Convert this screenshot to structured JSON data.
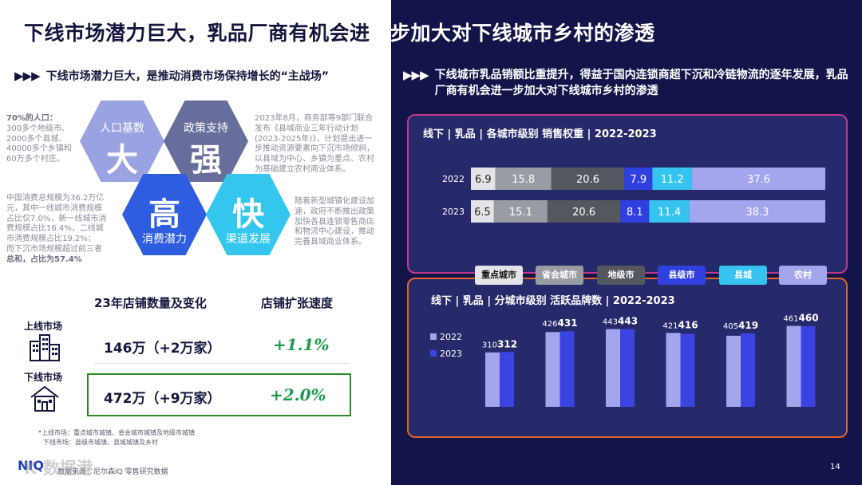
{
  "title": {
    "left": "下线市场潜力巨大，乳品厂商有机会进",
    "right": "一步加大对下线城市乡村的渗透"
  },
  "left": {
    "subtitle": "下线市场潜力巨大，是推动消费市场保持增长的“主战场”",
    "hexes": [
      {
        "small": "人口基数",
        "big": "大",
        "color": "#9aa3e2"
      },
      {
        "small": "政策支持",
        "big": "强",
        "color": "#686e9c"
      },
      {
        "small": "消费潜力",
        "big": "高",
        "color": "#2f5de0"
      },
      {
        "small": "渠道发展",
        "big": "快",
        "color": "#35c6ee"
      }
    ],
    "text_population": [
      "70%的人口：",
      "300多个地级市、",
      "2000多个县城、",
      "40000多个乡镇和",
      "60万多个村庄。"
    ],
    "text_policy": [
      "2023年8月，商务部等9部门联合",
      "发布《县域商业三年行动计划",
      "(2023-2025年)》，计划提出进一",
      "步推动资源要素向下沉市场倾斜，",
      "以县域为中心、乡镇为重点、农村",
      "为基础建立农村商业体系。"
    ],
    "text_consumption": [
      "中国消费总规模为36.2万亿",
      "元，其中一线城市消费规模",
      "占比仅7.0%，新一线城市消",
      "费规模占比16.4%，二线城",
      "市消费规模占比19.2%；",
      "而下沉市场规模超过前三者",
      "总和，占比为57.4%"
    ],
    "text_channel": [
      "随着新型城镇化建设加",
      "速，政府不断推出政策",
      "加快各县连锁零售商店",
      "和物流中心建设，推动",
      "完善县域商业体系。"
    ],
    "stores": {
      "head_count": "23年店铺数量及变化",
      "head_speed": "店铺扩张速度",
      "upper_label": "上线市场",
      "upper_value": "146万（+2万家）",
      "upper_speed": "+1.1%",
      "lower_label": "下线市场",
      "lower_value": "472万（+9万家）",
      "lower_speed": "+2.0%"
    },
    "footnote1": "*上线市场：重点城市城镇、省会城市城镇及地级市城镇",
    "footnote2": "下线市场：县级市城镇、县城城镇及乡村",
    "source": "数据来源：尼尔森IQ 零售研究数据",
    "logo": "NIQ",
    "watermark": "K  数据港"
  },
  "right": {
    "subtitle": "下线城市乳品销额比重提升，得益于国内连锁商超下沉和冷链物流的逐年发展，乳品厂商有机会进一步加大对下线城市乡村的渗透",
    "legend": [
      {
        "name": "重点城市",
        "bg": "#e4e4e8",
        "fg": "#111111"
      },
      {
        "name": "省会城市",
        "bg": "#9a9ca4",
        "fg": "#ffffff"
      },
      {
        "name": "地级市",
        "bg": "#55575f",
        "fg": "#ffffff"
      },
      {
        "name": "县级市",
        "bg": "#2f3fe0",
        "fg": "#ffffff"
      },
      {
        "name": "县城",
        "bg": "#36c3f0",
        "fg": "#ffffff"
      },
      {
        "name": "农村",
        "bg": "#a3a6ec",
        "fg": "#ffffff"
      }
    ],
    "page_number": "14"
  },
  "chart_data": [
    {
      "type": "bar",
      "orientation": "horizontal-stacked",
      "title": "线下 | 乳品 | 各城市级别 销售权重 | 2022-2023",
      "categories": [
        "2022",
        "2023"
      ],
      "series": [
        {
          "name": "重点城市",
          "values": [
            6.9,
            6.5
          ],
          "color": "#e4e4e8",
          "text": "#222222"
        },
        {
          "name": "省会城市",
          "values": [
            15.8,
            15.1
          ],
          "color": "#9a9ca4",
          "text": "#ffffff"
        },
        {
          "name": "地级市",
          "values": [
            20.6,
            20.6
          ],
          "color": "#55575f",
          "text": "#ffffff"
        },
        {
          "name": "县级市",
          "values": [
            7.9,
            8.1
          ],
          "color": "#2f3fe0",
          "text": "#ffffff"
        },
        {
          "name": "县城",
          "values": [
            11.2,
            11.4
          ],
          "color": "#36c3f0",
          "text": "#ffffff"
        },
        {
          "name": "农村",
          "values": [
            37.6,
            38.3
          ],
          "color": "#a3a6ec",
          "text": "#ffffff"
        }
      ]
    },
    {
      "type": "bar",
      "title": "线下 | 乳品 | 分城市级别 活跃品牌数 | 2022-2023",
      "categories": [
        "重点城市",
        "省会城市",
        "地级市",
        "县级市",
        "县城",
        "农村"
      ],
      "series": [
        {
          "name": "2022",
          "values": [
            310,
            426,
            443,
            421,
            405,
            461
          ],
          "color": "#a3a6ec"
        },
        {
          "name": "2023",
          "values": [
            312,
            431,
            443,
            416,
            419,
            460
          ],
          "color": "#3b43e0"
        }
      ],
      "ylim": [
        0,
        500
      ]
    }
  ]
}
